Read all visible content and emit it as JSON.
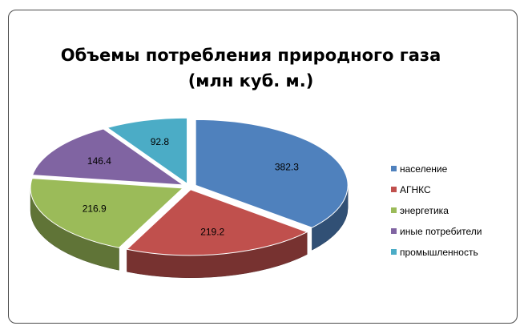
{
  "chart_data": {
    "type": "pie",
    "title": "Объемы потребления природного газа",
    "subtitle": "(млн куб. м.)",
    "categories": [
      "население",
      "АГНКС",
      "энергетика",
      "иные потребители",
      "промышленность"
    ],
    "values": [
      382.3,
      219.2,
      216.9,
      146.4,
      92.8
    ],
    "value_labels": [
      "382.3",
      "219.2",
      "216.9",
      "146.4",
      "92.8"
    ],
    "colors": [
      "#4F81BD",
      "#C0504D",
      "#9BBB59",
      "#8064A2",
      "#4BACC6"
    ],
    "exploded": true,
    "three_d": true,
    "legend_position": "right"
  }
}
